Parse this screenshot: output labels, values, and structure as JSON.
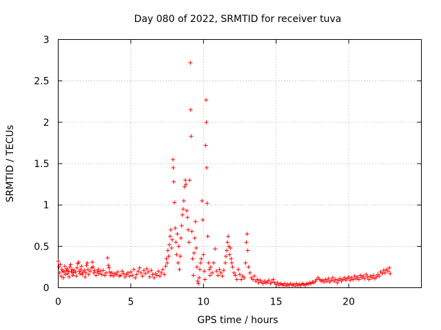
{
  "chart_data": {
    "type": "scatter",
    "title": "Day 080 of 2022, SRMTID for receiver tuva",
    "xlabel": "GPS time / hours",
    "ylabel": "SRMTID / TECUs",
    "xlim": [
      0,
      25
    ],
    "ylim": [
      0,
      3
    ],
    "xticks": [
      0,
      5,
      10,
      15,
      20
    ],
    "yticks": [
      0,
      0.5,
      1,
      1.5,
      2,
      2.5,
      3
    ],
    "xtick_labels": [
      "0",
      "5",
      "10",
      "15",
      "20"
    ],
    "ytick_labels": [
      "0",
      "0.5",
      "1",
      "1.5",
      "2",
      "2.5",
      "3"
    ],
    "grid": true,
    "marker": "+",
    "color": "#ff0000",
    "series": [
      {
        "name": "SRMTID",
        "points": [
          [
            0.0,
            0.32
          ],
          [
            0.05,
            0.25
          ],
          [
            0.1,
            0.18
          ],
          [
            0.15,
            0.28
          ],
          [
            0.2,
            0.14
          ],
          [
            0.25,
            0.22
          ],
          [
            0.3,
            0.2
          ],
          [
            0.35,
            0.12
          ],
          [
            0.4,
            0.19
          ],
          [
            0.45,
            0.26
          ],
          [
            0.5,
            0.16
          ],
          [
            0.55,
            0.21
          ],
          [
            0.6,
            0.23
          ],
          [
            0.65,
            0.17
          ],
          [
            0.7,
            0.2
          ],
          [
            0.75,
            0.13
          ],
          [
            0.8,
            0.25
          ],
          [
            0.85,
            0.28
          ],
          [
            0.9,
            0.19
          ],
          [
            0.95,
            0.22
          ],
          [
            1.0,
            0.15
          ],
          [
            1.05,
            0.18
          ],
          [
            1.1,
            0.21
          ],
          [
            1.2,
            0.19
          ],
          [
            1.25,
            0.14
          ],
          [
            1.3,
            0.24
          ],
          [
            1.35,
            0.29
          ],
          [
            1.4,
            0.31
          ],
          [
            1.45,
            0.2
          ],
          [
            1.5,
            0.17
          ],
          [
            1.55,
            0.22
          ],
          [
            1.6,
            0.26
          ],
          [
            1.65,
            0.16
          ],
          [
            1.7,
            0.19
          ],
          [
            1.8,
            0.21
          ],
          [
            1.85,
            0.13
          ],
          [
            1.9,
            0.18
          ],
          [
            1.95,
            0.27
          ],
          [
            2.0,
            0.3
          ],
          [
            2.05,
            0.22
          ],
          [
            2.1,
            0.16
          ],
          [
            2.2,
            0.2
          ],
          [
            2.3,
            0.24
          ],
          [
            2.35,
            0.31
          ],
          [
            2.4,
            0.25
          ],
          [
            2.45,
            0.18
          ],
          [
            2.5,
            0.21
          ],
          [
            2.6,
            0.15
          ],
          [
            2.7,
            0.19
          ],
          [
            2.75,
            0.22
          ],
          [
            2.8,
            0.17
          ],
          [
            2.9,
            0.2
          ],
          [
            3.0,
            0.16
          ],
          [
            3.1,
            0.21
          ],
          [
            3.2,
            0.15
          ],
          [
            3.3,
            0.18
          ],
          [
            3.4,
            0.36
          ],
          [
            3.45,
            0.27
          ],
          [
            3.5,
            0.24
          ],
          [
            3.55,
            0.19
          ],
          [
            3.6,
            0.15
          ],
          [
            3.7,
            0.18
          ],
          [
            3.8,
            0.14
          ],
          [
            3.9,
            0.17
          ],
          [
            4.0,
            0.16
          ],
          [
            4.1,
            0.19
          ],
          [
            4.2,
            0.14
          ],
          [
            4.3,
            0.15
          ],
          [
            4.4,
            0.2
          ],
          [
            4.5,
            0.17
          ],
          [
            4.6,
            0.13
          ],
          [
            4.7,
            0.16
          ],
          [
            4.8,
            0.18
          ],
          [
            4.9,
            0.14
          ],
          [
            5.0,
            0.19
          ],
          [
            5.1,
            0.15
          ],
          [
            5.2,
            0.22
          ],
          [
            5.3,
            0.12
          ],
          [
            5.4,
            0.16
          ],
          [
            5.5,
            0.2
          ],
          [
            5.6,
            0.24
          ],
          [
            5.7,
            0.18
          ],
          [
            5.8,
            0.14
          ],
          [
            5.9,
            0.21
          ],
          [
            6.0,
            0.17
          ],
          [
            6.1,
            0.23
          ],
          [
            6.2,
            0.19
          ],
          [
            6.3,
            0.13
          ],
          [
            6.4,
            0.21
          ],
          [
            6.5,
            0.16
          ],
          [
            6.6,
            0.12
          ],
          [
            6.7,
            0.17
          ],
          [
            6.8,
            0.15
          ],
          [
            6.9,
            0.2
          ],
          [
            7.0,
            0.14
          ],
          [
            7.1,
            0.18
          ],
          [
            7.2,
            0.22
          ],
          [
            7.3,
            0.16
          ],
          [
            7.4,
            0.26
          ],
          [
            7.45,
            0.35
          ],
          [
            7.5,
            0.3
          ],
          [
            7.55,
            0.45
          ],
          [
            7.6,
            0.38
          ],
          [
            7.65,
            0.52
          ],
          [
            7.7,
            0.62
          ],
          [
            7.75,
            0.7
          ],
          [
            7.8,
            0.48
          ],
          [
            7.85,
            0.58
          ],
          [
            7.9,
            1.55
          ],
          [
            7.92,
            1.45
          ],
          [
            7.95,
            1.28
          ],
          [
            8.0,
            1.03
          ],
          [
            8.05,
            0.72
          ],
          [
            8.1,
            0.55
          ],
          [
            8.15,
            0.4
          ],
          [
            8.2,
            0.65
          ],
          [
            8.25,
            0.3
          ],
          [
            8.3,
            0.5
          ],
          [
            8.35,
            0.22
          ],
          [
            8.4,
            0.38
          ],
          [
            8.45,
            0.6
          ],
          [
            8.5,
            0.75
          ],
          [
            8.55,
            0.88
          ],
          [
            8.6,
            0.95
          ],
          [
            8.65,
            1.05
          ],
          [
            8.7,
            1.22
          ],
          [
            8.75,
            1.3
          ],
          [
            8.8,
            1.25
          ],
          [
            8.85,
            0.93
          ],
          [
            8.9,
            0.85
          ],
          [
            8.95,
            0.7
          ],
          [
            9.0,
            0.55
          ],
          [
            9.05,
            1.3
          ],
          [
            9.1,
            2.72
          ],
          [
            9.12,
            2.15
          ],
          [
            9.15,
            1.83
          ],
          [
            9.2,
            0.68
          ],
          [
            9.25,
            0.35
          ],
          [
            9.3,
            0.15
          ],
          [
            9.35,
            0.42
          ],
          [
            9.4,
            0.6
          ],
          [
            9.45,
            0.8
          ],
          [
            9.5,
            0.48
          ],
          [
            9.55,
            0.25
          ],
          [
            9.6,
            0.08
          ],
          [
            9.65,
            0.05
          ],
          [
            9.7,
            0.12
          ],
          [
            9.75,
            0.22
          ],
          [
            9.8,
            0.3
          ],
          [
            9.85,
            0.35
          ],
          [
            9.9,
            1.05
          ],
          [
            9.95,
            0.82
          ],
          [
            10.0,
            0.4
          ],
          [
            10.05,
            0.2
          ],
          [
            10.1,
            0.1
          ],
          [
            10.15,
            1.72
          ],
          [
            10.18,
            2.27
          ],
          [
            10.2,
            2.0
          ],
          [
            10.22,
            1.45
          ],
          [
            10.25,
            1.02
          ],
          [
            10.3,
            0.62
          ],
          [
            10.35,
            0.3
          ],
          [
            10.4,
            0.22
          ],
          [
            10.45,
            0.15
          ],
          [
            10.5,
            0.25
          ],
          [
            10.6,
            0.18
          ],
          [
            10.7,
            0.3
          ],
          [
            10.8,
            0.47
          ],
          [
            10.9,
            0.2
          ],
          [
            11.0,
            0.15
          ],
          [
            11.1,
            0.22
          ],
          [
            11.2,
            0.18
          ],
          [
            11.3,
            0.14
          ],
          [
            11.4,
            0.21
          ],
          [
            11.5,
            0.3
          ],
          [
            11.55,
            0.38
          ],
          [
            11.6,
            0.45
          ],
          [
            11.65,
            0.55
          ],
          [
            11.7,
            0.62
          ],
          [
            11.75,
            0.5
          ],
          [
            11.8,
            0.4
          ],
          [
            11.85,
            0.48
          ],
          [
            11.9,
            0.35
          ],
          [
            11.95,
            0.3
          ],
          [
            12.0,
            0.25
          ],
          [
            12.1,
            0.18
          ],
          [
            12.2,
            0.15
          ],
          [
            12.3,
            0.1
          ],
          [
            12.4,
            0.22
          ],
          [
            12.5,
            0.16
          ],
          [
            12.6,
            0.1
          ],
          [
            12.7,
            0.14
          ],
          [
            12.8,
            0.12
          ],
          [
            12.9,
            0.3
          ],
          [
            12.95,
            0.55
          ],
          [
            13.0,
            0.65
          ],
          [
            13.05,
            0.45
          ],
          [
            13.1,
            0.25
          ],
          [
            13.2,
            0.18
          ],
          [
            13.3,
            0.12
          ],
          [
            13.4,
            0.1
          ],
          [
            13.5,
            0.14
          ],
          [
            13.6,
            0.08
          ],
          [
            13.7,
            0.1
          ],
          [
            13.8,
            0.06
          ],
          [
            13.9,
            0.09
          ],
          [
            14.0,
            0.07
          ],
          [
            14.1,
            0.05
          ],
          [
            14.2,
            0.08
          ],
          [
            14.3,
            0.06
          ],
          [
            14.4,
            0.07
          ],
          [
            14.5,
            0.09
          ],
          [
            14.6,
            0.05
          ],
          [
            14.7,
            0.07
          ],
          [
            14.8,
            0.1
          ],
          [
            14.9,
            0.06
          ],
          [
            15.0,
            0.04
          ],
          [
            15.1,
            0.06
          ],
          [
            15.2,
            0.03
          ],
          [
            15.3,
            0.05
          ],
          [
            15.4,
            0.04
          ],
          [
            15.5,
            0.03
          ],
          [
            15.6,
            0.05
          ],
          [
            15.7,
            0.02
          ],
          [
            15.8,
            0.04
          ],
          [
            15.9,
            0.03
          ],
          [
            16.0,
            0.05
          ],
          [
            16.1,
            0.03
          ],
          [
            16.2,
            0.04
          ],
          [
            16.3,
            0.02
          ],
          [
            16.4,
            0.05
          ],
          [
            16.5,
            0.03
          ],
          [
            16.6,
            0.04
          ],
          [
            16.7,
            0.03
          ],
          [
            16.8,
            0.05
          ],
          [
            16.9,
            0.04
          ],
          [
            17.0,
            0.03
          ],
          [
            17.1,
            0.05
          ],
          [
            17.2,
            0.04
          ],
          [
            17.3,
            0.06
          ],
          [
            17.4,
            0.05
          ],
          [
            17.5,
            0.07
          ],
          [
            17.6,
            0.06
          ],
          [
            17.7,
            0.08
          ],
          [
            17.8,
            0.1
          ],
          [
            17.9,
            0.12
          ],
          [
            18.0,
            0.1
          ],
          [
            18.1,
            0.08
          ],
          [
            18.2,
            0.09
          ],
          [
            18.3,
            0.07
          ],
          [
            18.4,
            0.1
          ],
          [
            18.5,
            0.08
          ],
          [
            18.6,
            0.11
          ],
          [
            18.7,
            0.07
          ],
          [
            18.8,
            0.09
          ],
          [
            18.9,
            0.12
          ],
          [
            19.0,
            0.08
          ],
          [
            19.1,
            0.1
          ],
          [
            19.2,
            0.06
          ],
          [
            19.3,
            0.09
          ],
          [
            19.4,
            0.11
          ],
          [
            19.5,
            0.08
          ],
          [
            19.6,
            0.1
          ],
          [
            19.7,
            0.12
          ],
          [
            19.8,
            0.09
          ],
          [
            19.9,
            0.11
          ],
          [
            20.0,
            0.13
          ],
          [
            20.1,
            0.09
          ],
          [
            20.2,
            0.12
          ],
          [
            20.3,
            0.1
          ],
          [
            20.4,
            0.14
          ],
          [
            20.5,
            0.11
          ],
          [
            20.6,
            0.13
          ],
          [
            20.7,
            0.1
          ],
          [
            20.8,
            0.15
          ],
          [
            20.9,
            0.12
          ],
          [
            21.0,
            0.14
          ],
          [
            21.1,
            0.11
          ],
          [
            21.2,
            0.16
          ],
          [
            21.3,
            0.13
          ],
          [
            21.4,
            0.1
          ],
          [
            21.5,
            0.14
          ],
          [
            21.6,
            0.12
          ],
          [
            21.7,
            0.15
          ],
          [
            21.8,
            0.11
          ],
          [
            21.9,
            0.13
          ],
          [
            22.0,
            0.16
          ],
          [
            22.1,
            0.14
          ],
          [
            22.2,
            0.19
          ],
          [
            22.3,
            0.17
          ],
          [
            22.4,
            0.21
          ],
          [
            22.5,
            0.18
          ],
          [
            22.6,
            0.22
          ],
          [
            22.7,
            0.2
          ],
          [
            22.8,
            0.24
          ],
          [
            22.85,
            0.17
          ]
        ]
      }
    ]
  }
}
